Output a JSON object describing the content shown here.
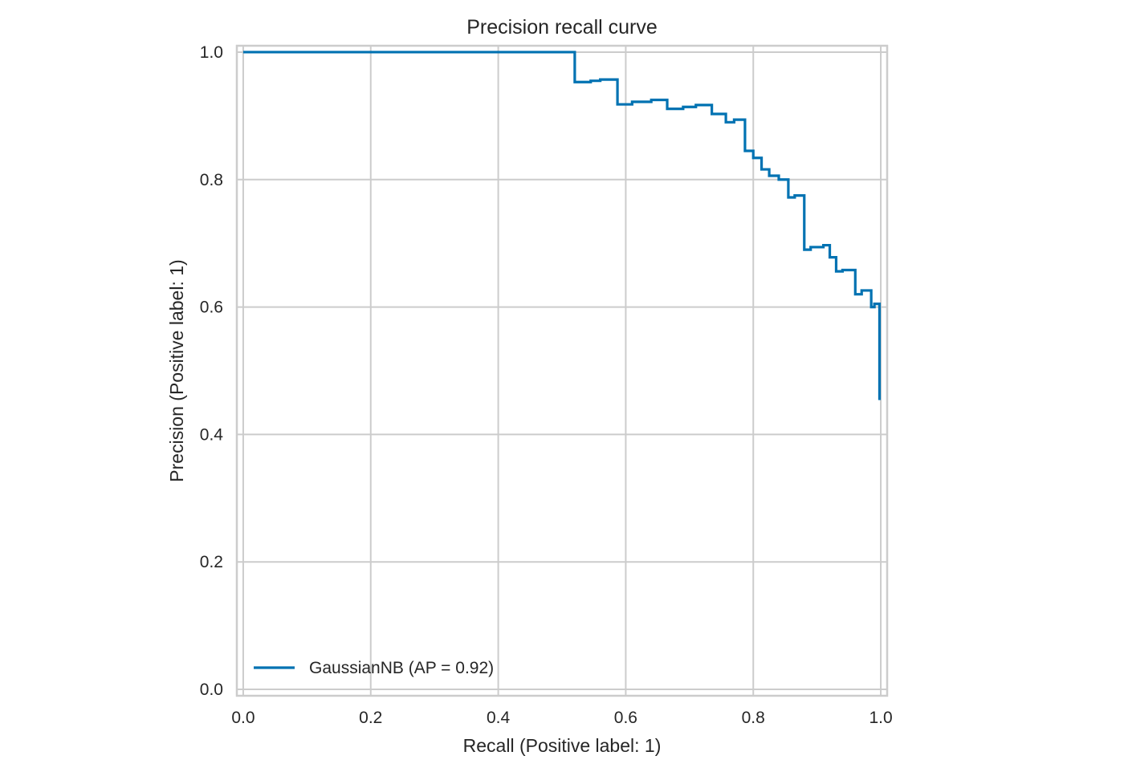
{
  "chart_data": {
    "type": "line",
    "title": "Precision recall curve",
    "xlabel": "Recall (Positive label: 1)",
    "ylabel": "Precision (Positive label: 1)",
    "xlim": [
      -0.01,
      1.01
    ],
    "ylim": [
      -0.01,
      1.01
    ],
    "xticks": [
      "0.0",
      "0.2",
      "0.4",
      "0.6",
      "0.8",
      "1.0"
    ],
    "yticks": [
      "0.0",
      "0.2",
      "0.4",
      "0.6",
      "0.8",
      "1.0"
    ],
    "grid": true,
    "legend_position": "lower-left",
    "series": [
      {
        "name": "GaussianNB (AP = 0.92)",
        "color": "#0072b2",
        "drawstyle": "steps-post",
        "points": [
          [
            0.0,
            1.0
          ],
          [
            0.52,
            1.0
          ],
          [
            0.52,
            0.953
          ],
          [
            0.545,
            0.953
          ],
          [
            0.545,
            0.955
          ],
          [
            0.56,
            0.955
          ],
          [
            0.56,
            0.957
          ],
          [
            0.587,
            0.957
          ],
          [
            0.587,
            0.918
          ],
          [
            0.61,
            0.918
          ],
          [
            0.61,
            0.922
          ],
          [
            0.64,
            0.922
          ],
          [
            0.64,
            0.925
          ],
          [
            0.665,
            0.925
          ],
          [
            0.665,
            0.911
          ],
          [
            0.69,
            0.911
          ],
          [
            0.69,
            0.914
          ],
          [
            0.71,
            0.914
          ],
          [
            0.71,
            0.917
          ],
          [
            0.735,
            0.917
          ],
          [
            0.735,
            0.903
          ],
          [
            0.757,
            0.903
          ],
          [
            0.757,
            0.89
          ],
          [
            0.77,
            0.89
          ],
          [
            0.77,
            0.894
          ],
          [
            0.787,
            0.894
          ],
          [
            0.787,
            0.845
          ],
          [
            0.8,
            0.845
          ],
          [
            0.8,
            0.834
          ],
          [
            0.813,
            0.834
          ],
          [
            0.813,
            0.816
          ],
          [
            0.825,
            0.816
          ],
          [
            0.825,
            0.806
          ],
          [
            0.84,
            0.806
          ],
          [
            0.84,
            0.8
          ],
          [
            0.855,
            0.8
          ],
          [
            0.855,
            0.772
          ],
          [
            0.865,
            0.772
          ],
          [
            0.865,
            0.775
          ],
          [
            0.88,
            0.775
          ],
          [
            0.88,
            0.69
          ],
          [
            0.89,
            0.69
          ],
          [
            0.89,
            0.694
          ],
          [
            0.91,
            0.694
          ],
          [
            0.91,
            0.697
          ],
          [
            0.92,
            0.697
          ],
          [
            0.92,
            0.678
          ],
          [
            0.93,
            0.678
          ],
          [
            0.93,
            0.656
          ],
          [
            0.94,
            0.656
          ],
          [
            0.94,
            0.658
          ],
          [
            0.96,
            0.658
          ],
          [
            0.96,
            0.62
          ],
          [
            0.97,
            0.62
          ],
          [
            0.97,
            0.626
          ],
          [
            0.985,
            0.626
          ],
          [
            0.985,
            0.6
          ],
          [
            0.99,
            0.6
          ],
          [
            0.99,
            0.605
          ],
          [
            0.998,
            0.605
          ],
          [
            0.998,
            0.454
          ]
        ]
      }
    ]
  }
}
